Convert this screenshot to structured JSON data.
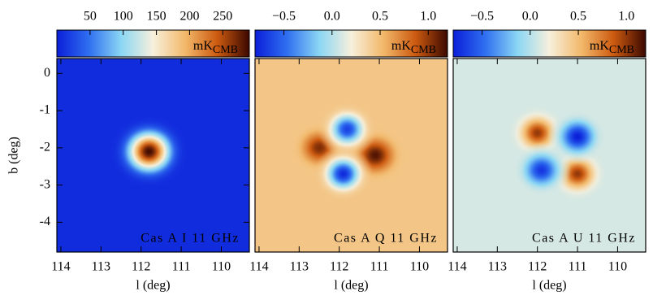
{
  "chart_data": [
    {
      "type": "heatmap",
      "label": "Cas A I 11 GHz",
      "label_color": "#ffffff",
      "colorbar_label": "mK",
      "colorbar_label_sub": "CMB",
      "colormap": [
        "#0b1fd9",
        "#2f6ff0",
        "#8ad6f4",
        "#f7f0dc",
        "#f2b86a",
        "#cc5a10",
        "#3c0800"
      ],
      "clim": [
        0,
        290
      ],
      "cticks": [
        50,
        100,
        150,
        200,
        250
      ],
      "xlabel": "l (deg)",
      "xlim": [
        114.1,
        109.3
      ],
      "xticks": [
        114,
        113,
        112,
        111,
        110
      ],
      "ylabel": "b (deg)",
      "ylim": [
        -4.8,
        0.4
      ],
      "yticks": [
        0,
        -1,
        -2,
        -3,
        -4
      ],
      "background": 8,
      "blobs": [
        {
          "l": 111.8,
          "b": -2.1,
          "amplitude": 280,
          "width": 0.33
        }
      ]
    },
    {
      "type": "heatmap",
      "label": "Cas A Q 11 GHz",
      "label_color": "#000000",
      "colorbar_label": "mK",
      "colorbar_label_sub": "CMB",
      "colormap": [
        "#0b1fd9",
        "#2f6ff0",
        "#8ad6f4",
        "#f7f0dc",
        "#f2b86a",
        "#cc5a10",
        "#3c0800"
      ],
      "clim": [
        -0.8,
        1.2
      ],
      "cticks": [
        {
          "value": -0.5,
          "label": "−0.5"
        },
        {
          "value": 0,
          "label": "0.0"
        },
        0.5,
        {
          "value": 1,
          "label": "1.0"
        }
      ],
      "xlabel": "l (deg)",
      "xlim": [
        114.1,
        109.3
      ],
      "xticks": [
        114,
        113,
        112,
        111,
        110
      ],
      "ylim": [
        -4.8,
        0.4
      ],
      "background": 0.45,
      "blobs": [
        {
          "l": 112.5,
          "b": -2.0,
          "amplitude": 0.6,
          "width": 0.25
        },
        {
          "l": 111.1,
          "b": -2.2,
          "amplitude": 0.7,
          "width": 0.27
        },
        {
          "l": 111.8,
          "b": -1.5,
          "amplitude": -1.1,
          "width": 0.25
        },
        {
          "l": 111.9,
          "b": -2.7,
          "amplitude": -1.2,
          "width": 0.25
        }
      ]
    },
    {
      "type": "heatmap",
      "label": "Cas A U 11 GHz",
      "label_color": "#000000",
      "colorbar_label": "mK",
      "colorbar_label_sub": "CMB",
      "colormap": [
        "#0b1fd9",
        "#2f6ff0",
        "#8ad6f4",
        "#f7f0dc",
        "#f2b86a",
        "#cc5a10",
        "#3c0800"
      ],
      "clim": [
        -0.8,
        1.2
      ],
      "cticks": [
        {
          "value": -0.5,
          "label": "−0.5"
        },
        {
          "value": 0,
          "label": "0.0"
        },
        0.5,
        {
          "value": 1,
          "label": "1.0"
        }
      ],
      "xlabel": "l (deg)",
      "xlim": [
        114.1,
        109.3
      ],
      "xticks": [
        114,
        113,
        112,
        111,
        110
      ],
      "ylim": [
        -4.8,
        0.4
      ],
      "background": 0.1,
      "blobs": [
        {
          "l": 112.0,
          "b": -1.6,
          "amplitude": 0.9,
          "width": 0.25
        },
        {
          "l": 111.0,
          "b": -2.7,
          "amplitude": 0.9,
          "width": 0.25
        },
        {
          "l": 111.0,
          "b": -1.7,
          "amplitude": -0.9,
          "width": 0.25
        },
        {
          "l": 111.9,
          "b": -2.6,
          "amplitude": -0.8,
          "width": 0.25
        }
      ]
    }
  ]
}
